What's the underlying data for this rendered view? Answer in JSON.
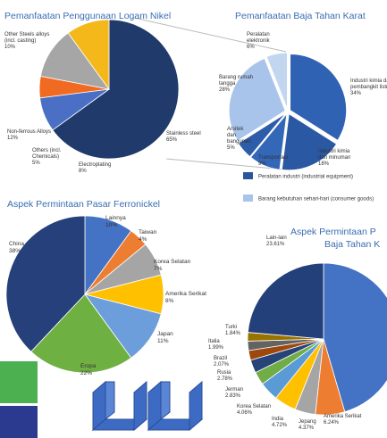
{
  "chart_data": [
    {
      "type": "pie",
      "title": "Pemanfaatan Penggunaan Logam Nikel",
      "categories": [
        "Stainless steel",
        "Electroplating",
        "Others (incl. Chemicals)",
        "Non-ferrous Alloys",
        "Other Steels alloys (incl. casting)"
      ],
      "values": [
        65,
        8,
        5,
        12,
        10
      ],
      "value_labels": [
        "65%",
        "8%",
        "5%",
        "12%",
        "10%"
      ],
      "colors": [
        "#1f3a6b",
        "#4a6fc4",
        "#f06a21",
        "#a6a6a6",
        "#f5b81a"
      ]
    },
    {
      "type": "pie",
      "title": "Pemanfaatan Baja Tahan Karat",
      "categories": [
        "Industri kimia dan pembangkit listrik",
        "Industri kimia dan minuman",
        "Transportasi",
        "Arsitek dan bangunan",
        "Barang rumah tangga",
        "Peralatan elektronik"
      ],
      "values": [
        34,
        18,
        9,
        5,
        28,
        6
      ],
      "value_labels": [
        "34%",
        "18%",
        "9%",
        "5%",
        "28%",
        "6%"
      ],
      "colors": [
        "#2f62b3",
        "#2a58a3",
        "#3367b8",
        "#2d5ca8",
        "#a9c4ea",
        "#c3d6f0"
      ],
      "legend": [
        {
          "label": "Peralatan industri (industrial equipment)",
          "color": "#2b569f"
        },
        {
          "label": "Barang kebutuhan sehari-hari (consumer goods)",
          "color": "#a9c4ea"
        }
      ]
    },
    {
      "type": "pie",
      "title": "Aspek Permintaan Pasar Ferronickel",
      "categories": [
        "Lainnya",
        "Taiwan",
        "Korea Selatan",
        "Amerika Serikat",
        "Japan",
        "Eropa",
        "China"
      ],
      "values": [
        10,
        4,
        7,
        8,
        11,
        22,
        38
      ],
      "value_labels": [
        "10%",
        "4%",
        "7%",
        "8%",
        "11%",
        "22%",
        "38%"
      ],
      "colors": [
        "#4472c4",
        "#ed7d31",
        "#a5a5a5",
        "#ffc000",
        "#6c9edb",
        "#6fb043",
        "#25407a"
      ]
    },
    {
      "type": "pie",
      "title": [
        "Aspek Permintaan P",
        "Baja Tahan K"
      ],
      "categories": [
        null,
        "Amerika Serikat",
        "Jepang",
        "India",
        "Korea Selatan",
        "Jerman",
        "Rusia",
        "Brazil",
        "Italia",
        "Turki",
        "Lain-lain"
      ],
      "values": [
        45.49,
        6.24,
        4.37,
        4.72,
        4.06,
        2.83,
        2.78,
        2.07,
        1.99,
        1.84,
        23.61
      ],
      "value_labels": [
        null,
        "6.24%",
        "4.37%",
        "4.72%",
        "4.06%",
        "2.83%",
        "2.78%",
        "2.07%",
        "1.99%",
        "1.84%",
        "23.61%"
      ],
      "colors": [
        "#4472c4",
        "#ed7d31",
        "#a5a5a5",
        "#ffc000",
        "#5b9bd5",
        "#70ad47",
        "#264478",
        "#9e480e",
        "#636363",
        "#997300",
        "#23407a"
      ]
    }
  ]
}
